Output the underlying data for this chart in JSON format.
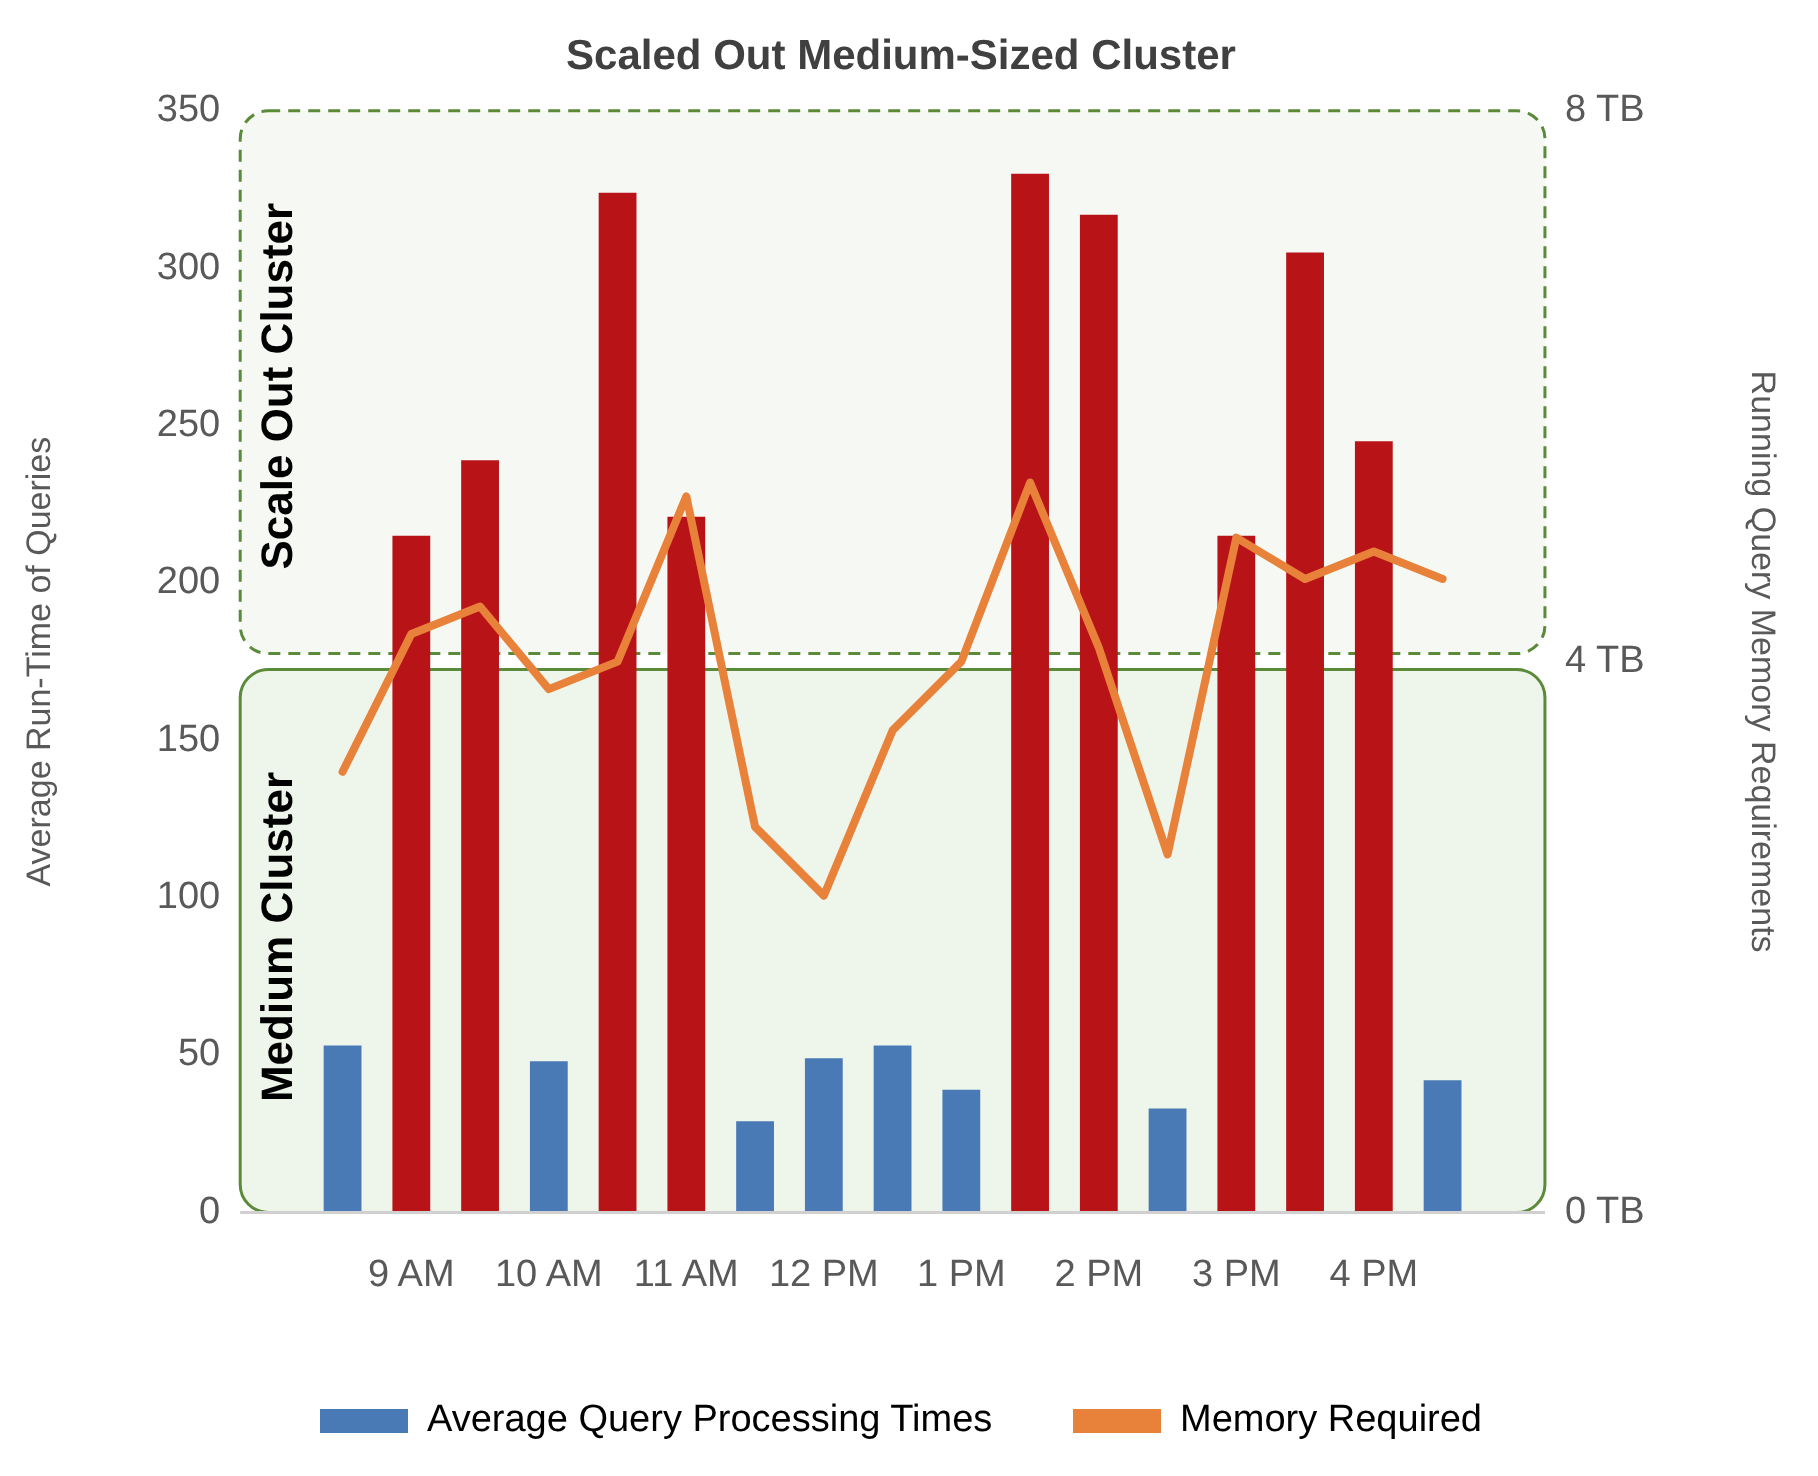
{
  "chart_data": {
    "type": "bar",
    "title": "Scaled Out Medium-Sized Cluster",
    "ylabel": "Average Run-Time of Queries",
    "y2label": "Running Query Memory Requirements",
    "categories": [
      null,
      "9 AM",
      null,
      "10 AM",
      null,
      "11 AM",
      null,
      "12 PM",
      null,
      "1 PM",
      null,
      "2 PM",
      null,
      "3 PM",
      null,
      "4 PM",
      null
    ],
    "series": [
      {
        "name": "Average Query Processing Times",
        "color": "#4a7ab5",
        "colors": [
          "#4a7ab5",
          "#b81418",
          "#b81418",
          "#4a7ab5",
          "#b81418",
          "#b81418",
          "#4a7ab5",
          "#4a7ab5",
          "#4a7ab5",
          "#4a7ab5",
          "#b81418",
          "#b81418",
          "#4a7ab5",
          "#b81418",
          "#b81418",
          "#b81418",
          "#4a7ab5"
        ],
        "values": [
          53,
          215,
          239,
          48,
          324,
          221,
          29,
          49,
          53,
          39,
          330,
          317,
          33,
          215,
          305,
          245,
          42
        ]
      },
      {
        "name": "Memory Required",
        "type": "line",
        "axis": "y2",
        "color": "#e8823a",
        "values": [
          3.2,
          4.2,
          4.4,
          3.8,
          4.0,
          5.2,
          2.8,
          2.3,
          3.5,
          4.0,
          5.3,
          4.1,
          2.6,
          4.9,
          4.6,
          4.8,
          4.6
        ]
      }
    ],
    "ylim": [
      0,
      350
    ],
    "yticks": [
      0,
      50,
      100,
      150,
      200,
      250,
      300,
      350
    ],
    "y2lim": [
      0,
      8
    ],
    "y2ticks": [
      {
        "value": 0,
        "label": "0 TB"
      },
      {
        "value": 4,
        "label": "4 TB"
      },
      {
        "value": 8,
        "label": "8 TB"
      }
    ],
    "bands": [
      {
        "axis": "y2",
        "from": 0,
        "to": 4,
        "label": "Medium Cluster",
        "color": "#eef5ea"
      },
      {
        "axis": "y2",
        "from": 4,
        "to": 8,
        "label": "Scale Out Cluster",
        "color": "#f6f9f3"
      }
    ],
    "grid": false,
    "legend": "bottom",
    "marker": "none",
    "line_style": "solid"
  }
}
